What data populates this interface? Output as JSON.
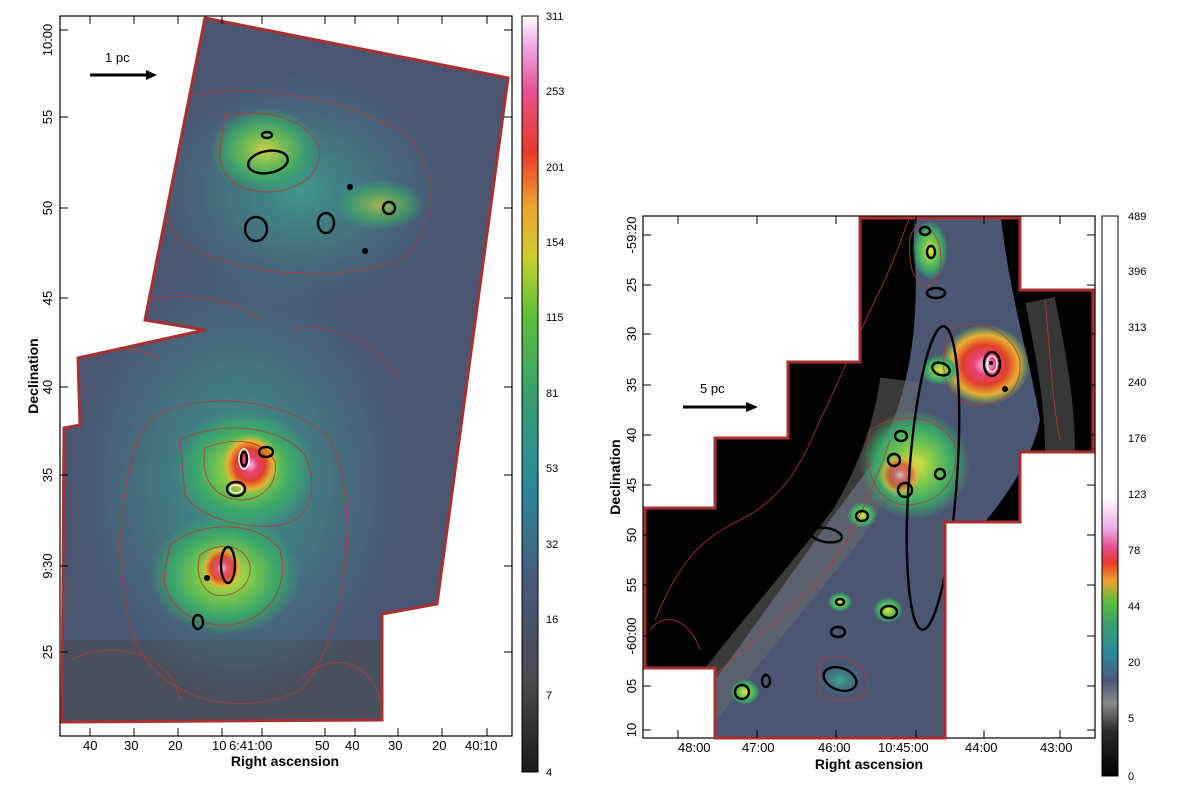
{
  "left_panel": {
    "scale_bar": "1 pc",
    "xlabel": "Right ascension",
    "ylabel": "Declination",
    "x_ticks": [
      "40",
      "30",
      "20",
      "10",
      "6:41:00",
      "50",
      "40",
      "30",
      "20",
      "40:10"
    ],
    "y_ticks": [
      "10:00",
      "55",
      "50",
      "45",
      "40",
      "35",
      "9:30",
      "25"
    ],
    "colorbar_ticks": [
      "311",
      "253",
      "201",
      "154",
      "115",
      "81",
      "53",
      "32",
      "16",
      "7",
      "4"
    ]
  },
  "right_panel": {
    "scale_bar": "5 pc",
    "xlabel": "Right ascension",
    "ylabel": "Declination",
    "x_ticks": [
      "48:00",
      "47:00",
      "46:00",
      "10:45:00",
      "44:00",
      "43:00"
    ],
    "y_ticks": [
      "-59:20",
      "25",
      "30",
      "35",
      "40",
      "45",
      "50",
      "55",
      "-60:00",
      "05",
      "10"
    ],
    "colorbar_ticks": [
      "489",
      "396",
      "313",
      "240",
      "176",
      "123",
      "78",
      "44",
      "20",
      "5",
      "0"
    ]
  },
  "colors": {
    "border": "#a83030",
    "contour": "#b83a2a",
    "low": "#4a5470",
    "mid": "#3aa060",
    "high": "#e0302a",
    "peak": "#f4c0e0"
  }
}
